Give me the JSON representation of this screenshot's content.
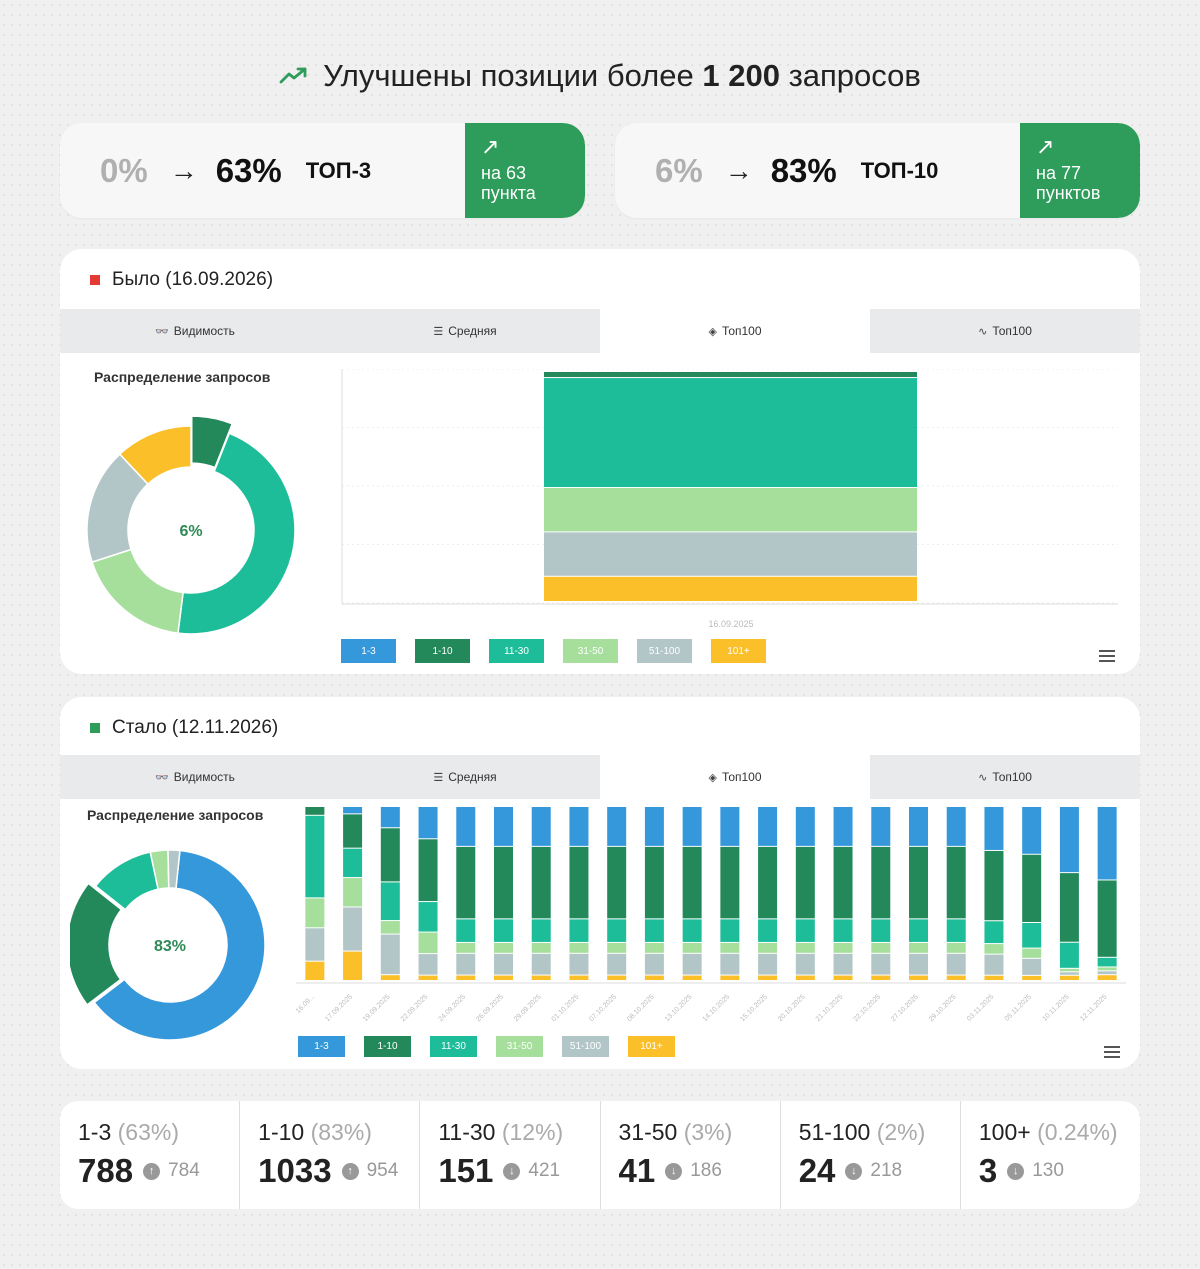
{
  "header": {
    "prefix": "Улучшены позиции более",
    "count": "1 200",
    "suffix": "запросов",
    "icon": "trend-up-icon"
  },
  "stats": [
    {
      "from": "0%",
      "to": "63%",
      "label": "ТОП-3",
      "badge_line1": "на 63",
      "badge_line2": "пункта"
    },
    {
      "from": "6%",
      "to": "83%",
      "label": "ТОП-10",
      "badge_line1": "на 77",
      "badge_line2": "пунктов"
    }
  ],
  "tabs": [
    "Видимость",
    "Средняя",
    "Топ100",
    "Топ100"
  ],
  "panels": {
    "before": {
      "title": "Было (16.09.2026)",
      "marker_color": "#e53935",
      "dist_title": "Распределение запросов",
      "donut_center": "6%",
      "date_label": "16.09.2025"
    },
    "after": {
      "title": "Стало (12.11.2026)",
      "marker_color": "#2e9c5a",
      "dist_title": "Распределение запросов",
      "donut_center": "83%"
    }
  },
  "legend": [
    {
      "label": "1-3",
      "color": "#3498db"
    },
    {
      "label": "1-10",
      "color": "#23895a"
    },
    {
      "label": "11-30",
      "color": "#1dbd9a"
    },
    {
      "label": "31-50",
      "color": "#a6df9c"
    },
    {
      "label": "51-100",
      "color": "#b3c6c7"
    },
    {
      "label": "101+",
      "color": "#fbbf2a"
    }
  ],
  "chart_data": [
    {
      "type": "pie",
      "title": "Распределение запросов",
      "categories": [
        "1-10",
        "11-30",
        "31-50",
        "51-100",
        "101+"
      ],
      "values": [
        6,
        46,
        18,
        18,
        12
      ]
    },
    {
      "type": "bar",
      "stacked": true,
      "categories": [
        "16.09.2025"
      ],
      "series": [
        {
          "name": "1-10",
          "values": [
            60
          ]
        },
        {
          "name": "11-30",
          "values": [
            1090
          ]
        },
        {
          "name": "31-50",
          "values": [
            440
          ]
        },
        {
          "name": "51-100",
          "values": [
            440
          ]
        },
        {
          "name": "101+",
          "values": [
            250
          ]
        }
      ]
    },
    {
      "type": "pie",
      "title": "Распределение запросов",
      "categories": [
        "1-3",
        "1-10",
        "11-30",
        "31-50",
        "51-100"
      ],
      "values": [
        63,
        21,
        11,
        3,
        2
      ]
    },
    {
      "type": "bar",
      "stacked": true,
      "categories": [
        "16.09...",
        "17.09.2025",
        "19.09.2025",
        "22.09.2025",
        "24.09.2025",
        "26.09.2025",
        "29.09.2025",
        "01.10.2025",
        "07.10.2025",
        "08.10.2025",
        "13.10.2025",
        "14.10.2025",
        "15.10.2025",
        "20.10.2025",
        "21.10.2025",
        "22.10.2025",
        "27.10.2025",
        "29.10.2025",
        "03.11.2025",
        "05.11.2025",
        "10.11.2025",
        "12.11.2025"
      ],
      "series": [
        {
          "name": "1-3",
          "values": [
            0,
            3,
            11,
            18,
            22,
            22,
            22,
            22,
            22,
            22,
            22,
            22,
            22,
            22,
            22,
            22,
            22,
            22,
            25,
            28,
            38,
            38
          ]
        },
        {
          "name": "1-10",
          "values": [
            5,
            14,
            28,
            35,
            40,
            40,
            40,
            40,
            40,
            40,
            40,
            40,
            40,
            40,
            40,
            40,
            40,
            40,
            40,
            40,
            40,
            40
          ]
        },
        {
          "name": "11-30",
          "values": [
            47,
            12,
            20,
            17,
            13,
            13,
            13,
            13,
            13,
            13,
            13,
            13,
            13,
            13,
            13,
            13,
            13,
            13,
            13,
            15,
            15,
            5
          ]
        },
        {
          "name": "31-50",
          "values": [
            17,
            12,
            7,
            12,
            6,
            6,
            6,
            6,
            6,
            6,
            6,
            6,
            6,
            6,
            6,
            6,
            6,
            6,
            6,
            6,
            2,
            2
          ]
        },
        {
          "name": "51-100",
          "values": [
            19,
            18,
            21,
            12,
            12,
            12,
            12,
            12,
            12,
            12,
            12,
            12,
            12,
            12,
            12,
            12,
            12,
            12,
            12,
            10,
            2,
            2
          ]
        },
        {
          "name": "101+",
          "values": [
            11,
            12,
            3,
            3,
            3,
            3,
            3,
            3,
            3,
            3,
            3,
            3,
            3,
            3,
            3,
            3,
            3,
            3,
            3,
            3,
            3,
            3
          ]
        }
      ]
    }
  ],
  "summary": [
    {
      "range": "1-3",
      "pct": "(63%)",
      "now": "788",
      "dir": "up",
      "prev": "784"
    },
    {
      "range": "1-10",
      "pct": "(83%)",
      "now": "1033",
      "dir": "up",
      "prev": "954"
    },
    {
      "range": "11-30",
      "pct": "(12%)",
      "now": "151",
      "dir": "down",
      "prev": "421"
    },
    {
      "range": "31-50",
      "pct": "(3%)",
      "now": "41",
      "dir": "down",
      "prev": "186"
    },
    {
      "range": "51-100",
      "pct": "(2%)",
      "now": "24",
      "dir": "down",
      "prev": "218"
    },
    {
      "range": "100+",
      "pct": "(0.24%)",
      "now": "3",
      "dir": "down",
      "prev": "130"
    }
  ]
}
